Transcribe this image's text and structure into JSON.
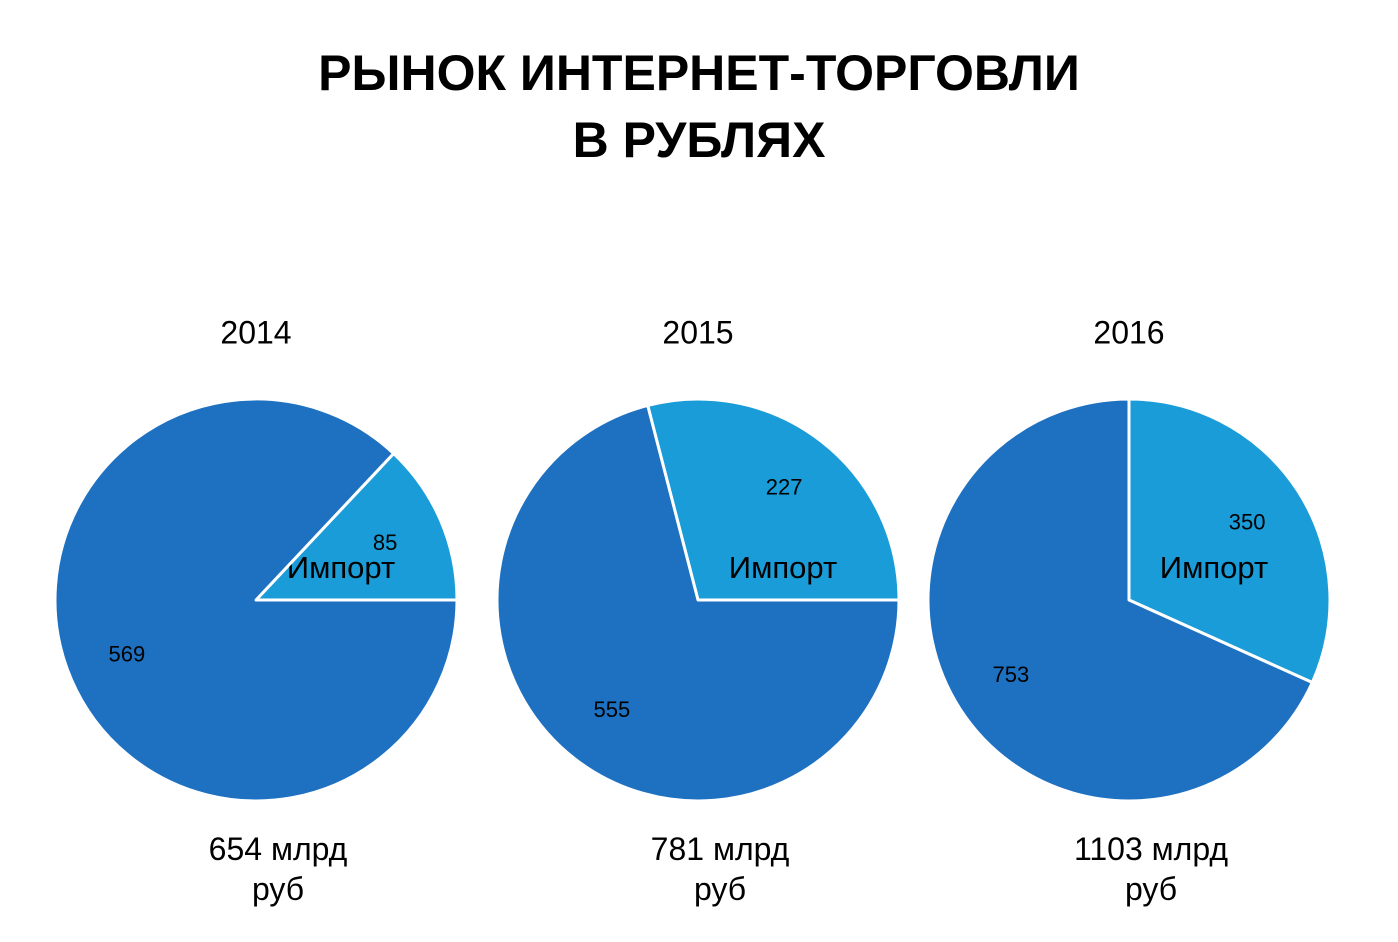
{
  "title": [
    "РЫНОК ИНТЕРНЕТ-ТОРГОВЛИ",
    "В РУБЛЯХ"
  ],
  "chart_data": [
    {
      "type": "pie",
      "title": "2014",
      "categories": [
        "Импорт",
        null
      ],
      "values": [
        85,
        569
      ],
      "colors": [
        "#1a9cd8",
        "#1e70c1"
      ],
      "startangle": 0,
      "counterclock": true,
      "caption": "654 млрд руб"
    },
    {
      "type": "pie",
      "title": "2015",
      "categories": [
        "Импорт",
        null
      ],
      "values": [
        227,
        555
      ],
      "colors": [
        "#1a9cd8",
        "#1e70c1"
      ],
      "startangle": 0,
      "counterclock": true,
      "caption": "781 млрд руб"
    },
    {
      "type": "pie",
      "title": "2016",
      "categories": [
        "Импорт",
        null
      ],
      "values": [
        350,
        753
      ],
      "colors": [
        "#1a9cd8",
        "#1e70c1"
      ],
      "startangle": 90,
      "counterclock": false,
      "caption": "1103 млрд руб"
    }
  ]
}
